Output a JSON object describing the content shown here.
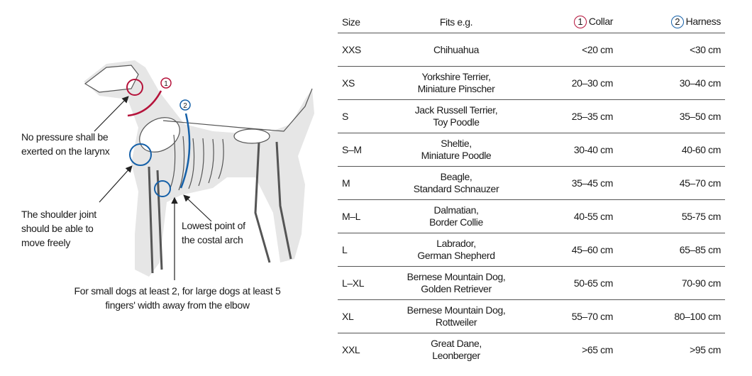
{
  "colors": {
    "collar": "#b5123a",
    "harness": "#1560a8",
    "silhouette": "#e6e6e6"
  },
  "diagram": {
    "markers": {
      "collar": "1",
      "harness": "2"
    },
    "notes": {
      "larynx": "No pressure shall be exerted on the larynx",
      "shoulder": "The shoulder joint should be able to move freely",
      "costal": "Lowest point of the costal arch",
      "elbow": "For small dogs at least 2, for large dogs at least 5 fingers' width away from the elbow"
    }
  },
  "table": {
    "headers": {
      "size": "Size",
      "fits": "Fits e.g.",
      "collar": "Collar",
      "harness": "Harness"
    },
    "rows": [
      {
        "size": "XXS",
        "fits": [
          "Chihuahua"
        ],
        "collar": "<20 cm",
        "harness": "<30 cm"
      },
      {
        "size": "XS",
        "fits": [
          "Yorkshire Terrier,",
          "Miniature Pinscher"
        ],
        "collar": "20–30 cm",
        "harness": "30–40 cm"
      },
      {
        "size": "S",
        "fits": [
          "Jack Russell Terrier,",
          "Toy Poodle"
        ],
        "collar": "25–35 cm",
        "harness": "35–50 cm"
      },
      {
        "size": "S–M",
        "fits": [
          "Sheltie,",
          "Miniature Poodle"
        ],
        "collar": "30-40 cm",
        "harness": "40-60 cm"
      },
      {
        "size": "M",
        "fits": [
          "Beagle,",
          "Standard Schnauzer"
        ],
        "collar": "35–45 cm",
        "harness": "45–70 cm"
      },
      {
        "size": "M–L",
        "fits": [
          "Dalmatian,",
          "Border Collie"
        ],
        "collar": "40-55 cm",
        "harness": "55-75 cm"
      },
      {
        "size": "L",
        "fits": [
          "Labrador,",
          "German Shepherd"
        ],
        "collar": "45–60 cm",
        "harness": "65–85 cm"
      },
      {
        "size": "L–XL",
        "fits": [
          "Bernese Mountain Dog,",
          "Golden Retriever"
        ],
        "collar": "50-65 cm",
        "harness": "70-90 cm"
      },
      {
        "size": "XL",
        "fits": [
          "Bernese Mountain Dog,",
          "Rottweiler"
        ],
        "collar": "55–70 cm",
        "harness": "80–100 cm"
      },
      {
        "size": "XXL",
        "fits": [
          "Great Dane,",
          "Leonberger"
        ],
        "collar": ">65 cm",
        "harness": ">95 cm"
      }
    ]
  }
}
